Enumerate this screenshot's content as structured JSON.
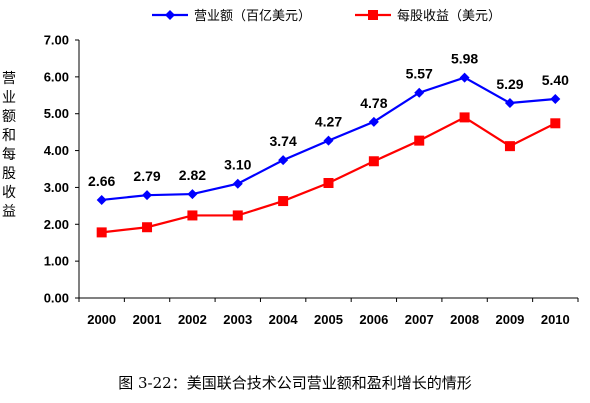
{
  "caption": "图 3-22：美国联合技术公司营业额和盈利增长的情形",
  "chart_data": {
    "type": "line",
    "categories": [
      "2000",
      "2001",
      "2002",
      "2003",
      "2004",
      "2005",
      "2006",
      "2007",
      "2008",
      "2009",
      "2010"
    ],
    "series": [
      {
        "name": "营业额（百亿美元）",
        "color": "#0000ff",
        "marker": "diamond",
        "values": [
          2.66,
          2.79,
          2.82,
          3.1,
          3.74,
          4.27,
          4.78,
          5.57,
          5.98,
          5.29,
          5.4
        ],
        "show_labels": true
      },
      {
        "name": "每股收益（美元）",
        "color": "#ff0000",
        "marker": "square",
        "values": [
          1.78,
          1.92,
          2.24,
          2.24,
          2.63,
          3.12,
          3.71,
          4.27,
          4.9,
          4.12,
          4.74
        ],
        "show_labels": false
      }
    ],
    "ylabel": "营业额和每股收益",
    "ylim": [
      0,
      7
    ],
    "yticks": [
      "0.00",
      "1.00",
      "2.00",
      "3.00",
      "4.00",
      "5.00",
      "6.00",
      "7.00"
    ],
    "legend_position": "top",
    "grid": false
  }
}
